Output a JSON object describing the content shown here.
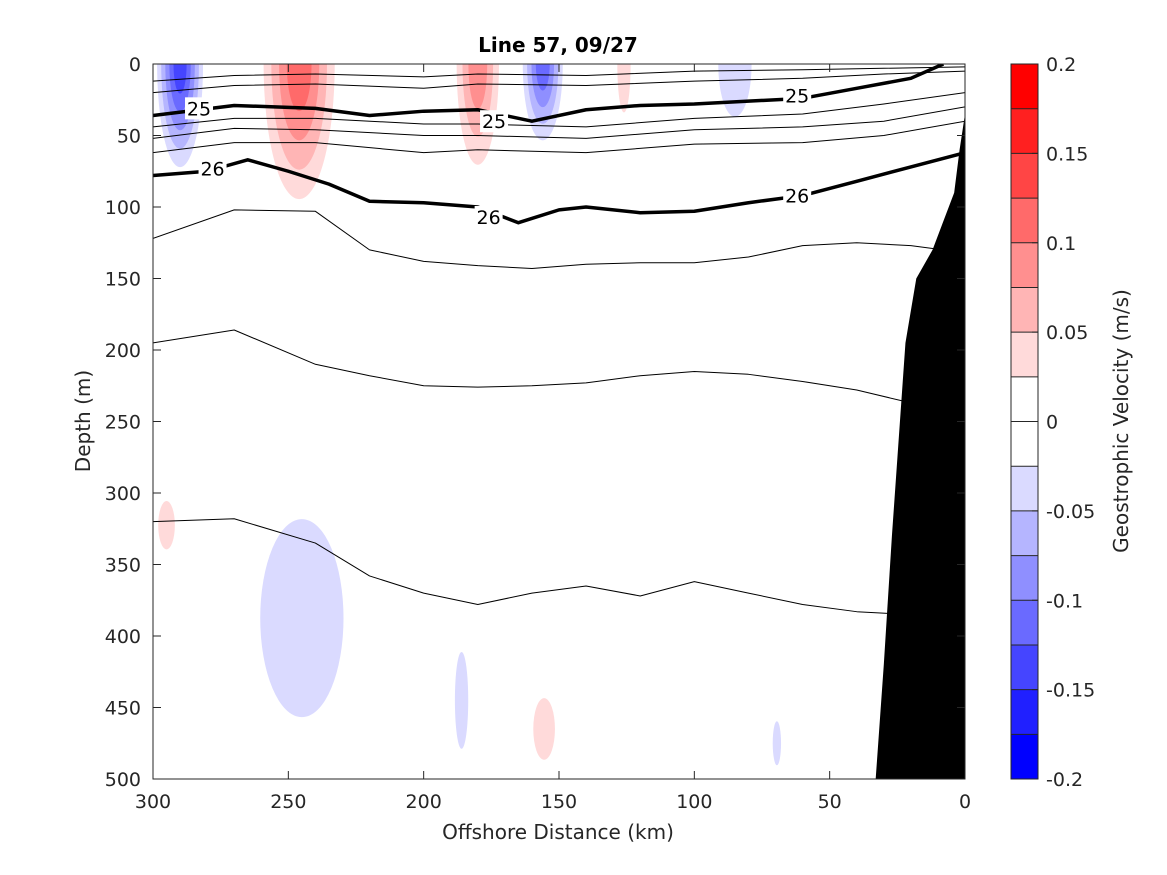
{
  "chart_data": {
    "type": "contour",
    "title": "Line 57, 09/27",
    "xlabel": "Offshore Distance (km)",
    "ylabel": "Depth (m)",
    "xlim": [
      300,
      0
    ],
    "ylim": [
      0,
      500
    ],
    "x_direction": "reversed",
    "y_direction": "reversed (depth increases downward)",
    "x_ticks": [
      "300",
      "250",
      "200",
      "150",
      "100",
      "50",
      "0"
    ],
    "y_ticks": [
      "0",
      "50",
      "100",
      "150",
      "200",
      "250",
      "300",
      "350",
      "400",
      "450",
      "500"
    ],
    "colorbar": {
      "label": "Geostrophic Velocity (m/s)",
      "range": [
        -0.2,
        0.2
      ],
      "tick_labels": [
        "0.2",
        "0.15",
        "0.1",
        "0.05",
        "0",
        "-0.05",
        "-0.1",
        "-0.15",
        "-0.2"
      ],
      "levels": [
        0.2,
        0.175,
        0.15,
        0.125,
        0.1,
        0.075,
        0.05,
        0.025,
        0.0,
        -0.025,
        -0.05,
        -0.075,
        -0.1,
        -0.125,
        -0.15,
        -0.175,
        -0.2
      ],
      "colors": [
        "#ff0000",
        "#ff2020",
        "#ff4545",
        "#ff6a6a",
        "#ff8f8f",
        "#ffb5b5",
        "#ffdada",
        "#ffffff",
        "#ffffff",
        "#dadaff",
        "#b5b5ff",
        "#8f8fff",
        "#6a6aff",
        "#4545ff",
        "#2020ff",
        "#0000ff"
      ]
    },
    "velocity_patches": [
      {
        "sign": "positive",
        "x_range": [
          262,
          230
        ],
        "depth_range": [
          0,
          115
        ],
        "peak": 0.12
      },
      {
        "sign": "positive",
        "x_range": [
          190,
          170
        ],
        "depth_range": [
          0,
          90
        ],
        "peak": 0.1
      },
      {
        "sign": "positive",
        "x_range": [
          130,
          122
        ],
        "depth_range": [
          0,
          55
        ],
        "peak": 0.04
      },
      {
        "sign": "positive",
        "x_range": [
          300,
          290
        ],
        "depth_range": [
          295,
          350
        ],
        "peak": 0.04
      },
      {
        "sign": "positive",
        "x_range": [
          162,
          149
        ],
        "depth_range": [
          430,
          500
        ],
        "peak": 0.04
      },
      {
        "sign": "negative",
        "x_range": [
          300,
          280
        ],
        "depth_range": [
          0,
          85
        ],
        "peak": -0.14
      },
      {
        "sign": "negative",
        "x_range": [
          165,
          147
        ],
        "depth_range": [
          0,
          65
        ],
        "peak": -0.12
      },
      {
        "sign": "negative",
        "x_range": [
          270,
          220
        ],
        "depth_range": [
          275,
          500
        ],
        "peak": -0.06
      },
      {
        "sign": "negative",
        "x_range": [
          190,
          182
        ],
        "depth_range": [
          390,
          500
        ],
        "peak": -0.04
      },
      {
        "sign": "negative",
        "x_range": [
          72,
          67
        ],
        "depth_range": [
          450,
          500
        ],
        "peak": -0.04
      },
      {
        "sign": "negative",
        "x_range": [
          95,
          75
        ],
        "depth_range": [
          0,
          60
        ],
        "peak": -0.05
      }
    ],
    "isopycnals": [
      {
        "label": "25",
        "bold": true,
        "x": [
          300,
          270,
          240,
          220,
          200,
          180,
          160,
          140,
          120,
          100,
          80,
          60,
          40,
          20,
          8
        ],
        "depth": [
          36,
          29,
          31,
          36,
          33,
          32,
          40,
          32,
          29,
          28,
          26,
          24,
          17,
          10,
          0
        ]
      },
      {
        "label": "26",
        "bold": true,
        "x": [
          300,
          280,
          265,
          250,
          235,
          220,
          200,
          180,
          165,
          150,
          140,
          120,
          100,
          80,
          60,
          40,
          20,
          0
        ],
        "depth": [
          78,
          75,
          67,
          75,
          84,
          96,
          97,
          100,
          111,
          102,
          100,
          104,
          103,
          97,
          92,
          82,
          72,
          62
        ]
      },
      {
        "label": "",
        "bold": false,
        "x": [
          300,
          270,
          240,
          220,
          200,
          180,
          160,
          140,
          120,
          100,
          80,
          60,
          40,
          20,
          0
        ],
        "depth": [
          122,
          102,
          103,
          130,
          138,
          141,
          143,
          140,
          139,
          139,
          135,
          127,
          125,
          127,
          132
        ]
      },
      {
        "label": "",
        "bold": false,
        "x": [
          300,
          270,
          240,
          220,
          200,
          180,
          160,
          140,
          120,
          100,
          80,
          60,
          40,
          20,
          0
        ],
        "depth": [
          195,
          186,
          210,
          218,
          225,
          226,
          225,
          223,
          218,
          215,
          217,
          222,
          228,
          237,
          245
        ]
      },
      {
        "label": "",
        "bold": false,
        "x": [
          300,
          270,
          240,
          220,
          200,
          180,
          160,
          140,
          120,
          100,
          80,
          60,
          40,
          20
        ],
        "depth": [
          320,
          318,
          335,
          358,
          370,
          378,
          370,
          365,
          372,
          362,
          370,
          378,
          383,
          385
        ]
      }
    ],
    "thin_upper_contours": [
      {
        "x": [
          300,
          270,
          240,
          200,
          180,
          140,
          100,
          60,
          30,
          0
        ],
        "depth": [
          12,
          8,
          7,
          9,
          7,
          8,
          5,
          4,
          3,
          2
        ]
      },
      {
        "x": [
          300,
          270,
          240,
          200,
          180,
          140,
          100,
          60,
          30,
          0
        ],
        "depth": [
          20,
          15,
          14,
          17,
          14,
          15,
          12,
          10,
          7,
          5
        ]
      },
      {
        "x": [
          300,
          270,
          240,
          200,
          180,
          140,
          100,
          60,
          30,
          0
        ],
        "depth": [
          44,
          38,
          38,
          42,
          42,
          44,
          38,
          35,
          28,
          20
        ]
      },
      {
        "x": [
          300,
          270,
          240,
          200,
          180,
          140,
          100,
          60,
          30,
          0
        ],
        "depth": [
          52,
          45,
          46,
          50,
          50,
          52,
          46,
          44,
          40,
          30
        ]
      },
      {
        "x": [
          300,
          270,
          240,
          200,
          180,
          140,
          100,
          60,
          30,
          0
        ],
        "depth": [
          62,
          55,
          55,
          62,
          60,
          62,
          56,
          55,
          50,
          40
        ]
      }
    ],
    "bathymetry": {
      "x": [
        33,
        30,
        27,
        22,
        18,
        12,
        8,
        4,
        2,
        0,
        0
      ],
      "depth": [
        500,
        420,
        330,
        195,
        150,
        130,
        110,
        90,
        60,
        35,
        500
      ]
    },
    "contour_label_positions": [
      {
        "text": "25",
        "x": 283,
        "depth": 31
      },
      {
        "text": "25",
        "x": 174,
        "depth": 40
      },
      {
        "text": "25",
        "x": 62,
        "depth": 22
      },
      {
        "text": "26",
        "x": 278,
        "depth": 73
      },
      {
        "text": "26",
        "x": 176,
        "depth": 107
      },
      {
        "text": "26",
        "x": 62,
        "depth": 92
      }
    ]
  }
}
